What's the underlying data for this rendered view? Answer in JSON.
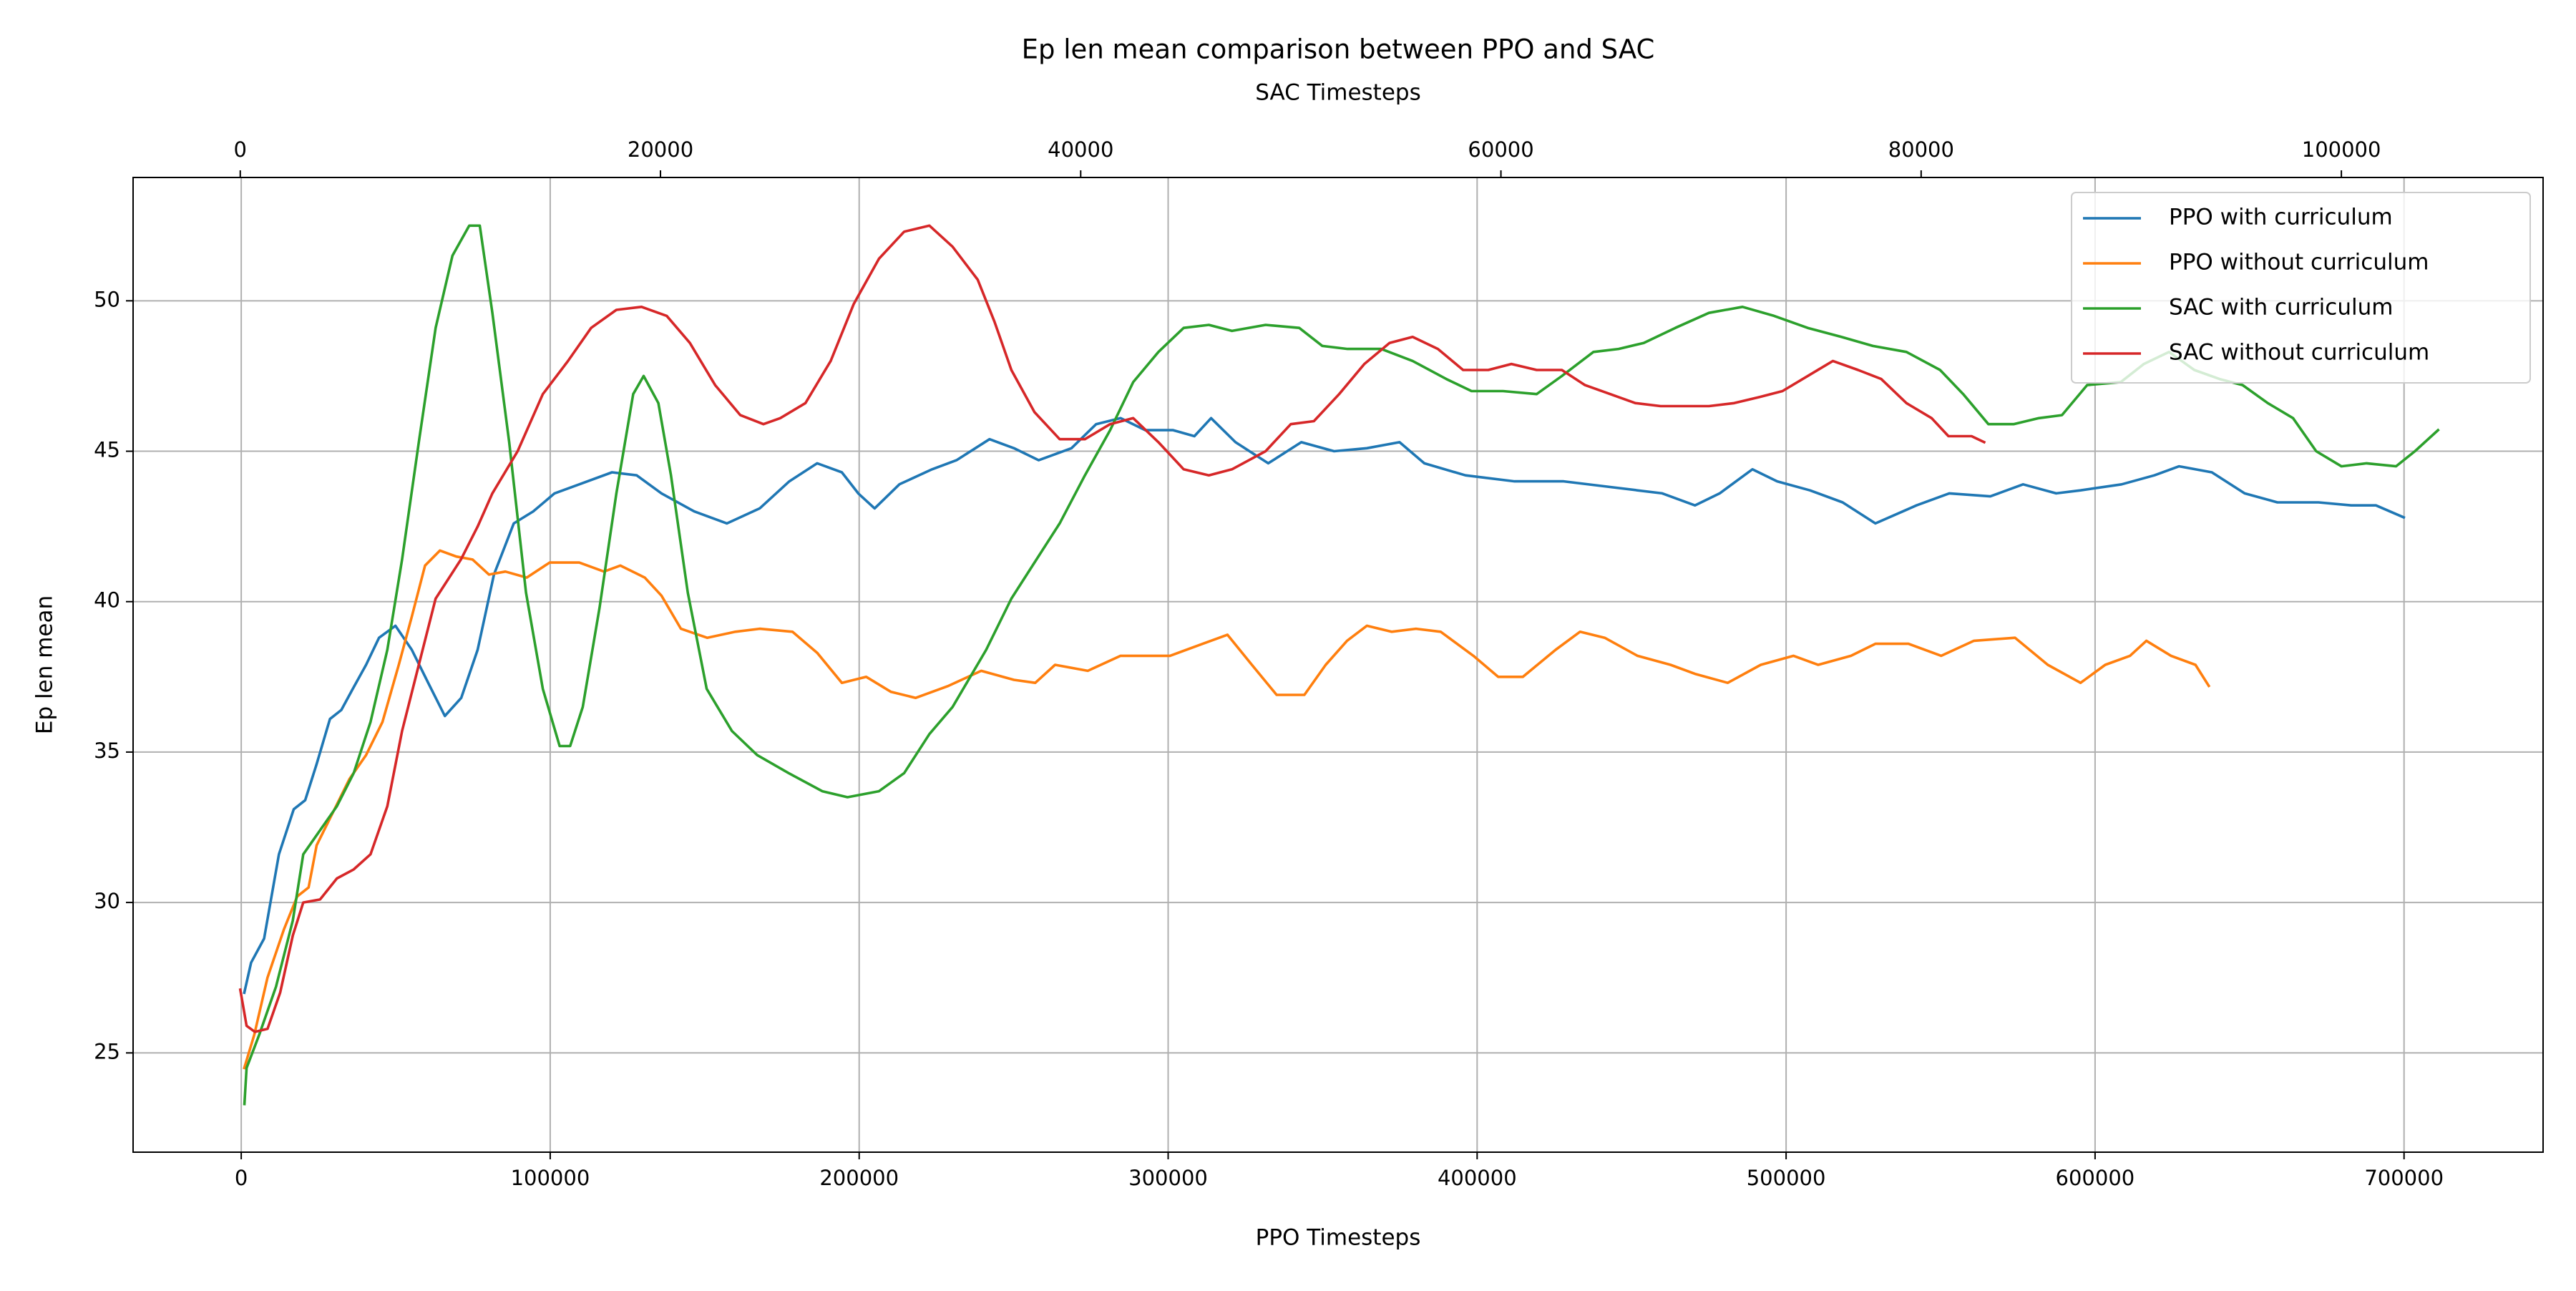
{
  "chart_data": {
    "type": "line",
    "title": "Ep len mean comparison between PPO and SAC",
    "xlabel": "PPO Timesteps",
    "x2label": "SAC Timesteps",
    "ylabel": "Ep len mean",
    "xlim": [
      -35000,
      745000
    ],
    "xticks": [
      0,
      100000,
      200000,
      300000,
      400000,
      500000,
      600000,
      700000
    ],
    "x2lim": [
      -5100,
      109600
    ],
    "x2ticks": [
      0,
      20000,
      40000,
      60000,
      80000,
      100000
    ],
    "ylim": [
      21.7,
      54.1
    ],
    "yticks": [
      25,
      30,
      35,
      40,
      45,
      50
    ],
    "grid": true,
    "legend": "upper right",
    "series": [
      {
        "name": "PPO with curriculum",
        "color": "#1f77b4",
        "axis": "x",
        "x": [
          1000,
          3200,
          7400,
          12200,
          17000,
          20700,
          24400,
          28700,
          32400,
          36100,
          40400,
          44600,
          49900,
          55200,
          60500,
          65900,
          71200,
          76500,
          81800,
          88200,
          94500,
          101400,
          109400,
          120000,
          128000,
          136000,
          146600,
          157200,
          167800,
          177400,
          186400,
          194400,
          199700,
          205000,
          213000,
          223600,
          231500,
          242200,
          250100,
          258100,
          268700,
          276700,
          284600,
          292600,
          301600,
          308500,
          313900,
          321800,
          332400,
          343100,
          353700,
          364300,
          374900,
          382900,
          396200,
          412100,
          428000,
          444000,
          459900,
          470500,
          478500,
          489100,
          497100,
          507700,
          518300,
          528900,
          542200,
          552800,
          566100,
          576700,
          587400,
          595300,
          608600,
          619200,
          627200,
          637800,
          648400,
          659000,
          672300,
          682900,
          690900,
          699900
        ],
        "values": [
          27.0,
          28.0,
          28.8,
          31.6,
          33.1,
          33.4,
          34.6,
          36.1,
          36.4,
          37.1,
          37.9,
          38.8,
          39.2,
          38.4,
          37.3,
          36.2,
          36.8,
          38.4,
          40.9,
          42.6,
          43.0,
          43.6,
          43.9,
          44.3,
          44.2,
          43.6,
          43.0,
          42.6,
          43.1,
          44.0,
          44.6,
          44.3,
          43.6,
          43.1,
          43.9,
          44.4,
          44.7,
          45.4,
          45.1,
          44.7,
          45.1,
          45.9,
          46.1,
          45.7,
          45.7,
          45.5,
          46.1,
          45.3,
          44.6,
          45.3,
          45.0,
          45.1,
          45.3,
          44.6,
          44.2,
          44.0,
          44.0,
          43.8,
          43.6,
          43.2,
          43.6,
          44.4,
          44.0,
          43.7,
          43.3,
          42.6,
          43.2,
          43.6,
          43.5,
          43.9,
          43.6,
          43.7,
          43.9,
          44.2,
          44.5,
          44.3,
          43.6,
          43.3,
          43.3,
          43.2,
          43.2,
          42.8
        ]
      },
      {
        "name": "PPO without curriculum",
        "color": "#ff7f0e",
        "axis": "x",
        "x": [
          1000,
          4200,
          8500,
          13800,
          18100,
          21800,
          24400,
          29700,
          35000,
          40400,
          45700,
          51000,
          55200,
          59500,
          64300,
          69600,
          74900,
          80200,
          85500,
          92400,
          99800,
          109400,
          117400,
          122700,
          130600,
          136000,
          142300,
          150800,
          159900,
          167800,
          178400,
          186400,
          194400,
          202300,
          210300,
          218300,
          228900,
          239500,
          250100,
          257000,
          263400,
          274000,
          284600,
          292600,
          300600,
          311200,
          319200,
          327100,
          335100,
          344100,
          351000,
          357900,
          364300,
          372300,
          380200,
          388200,
          398800,
          406800,
          414800,
          425400,
          433300,
          441300,
          451900,
          462600,
          470500,
          481100,
          491800,
          502400,
          510400,
          521000,
          528900,
          539600,
          550200,
          560800,
          574100,
          584700,
          595300,
          603300,
          611300,
          616600,
          624600,
          632500,
          636800
        ],
        "values": [
          24.5,
          25.6,
          27.5,
          29.1,
          30.2,
          30.5,
          31.9,
          33.0,
          34.1,
          34.9,
          36.0,
          37.9,
          39.5,
          41.2,
          41.7,
          41.5,
          41.4,
          40.9,
          41.0,
          40.8,
          41.3,
          41.3,
          41.0,
          41.2,
          40.8,
          40.2,
          39.1,
          38.8,
          39.0,
          39.1,
          39.0,
          38.3,
          37.3,
          37.5,
          37.0,
          36.8,
          37.2,
          37.7,
          37.4,
          37.3,
          37.9,
          37.7,
          38.2,
          38.2,
          38.2,
          38.6,
          38.9,
          37.9,
          36.9,
          36.9,
          37.9,
          38.7,
          39.2,
          39.0,
          39.1,
          39.0,
          38.2,
          37.5,
          37.5,
          38.4,
          39.0,
          38.8,
          38.2,
          37.9,
          37.6,
          37.3,
          37.9,
          38.2,
          37.9,
          38.2,
          38.6,
          38.6,
          38.2,
          38.7,
          38.8,
          37.9,
          37.3,
          37.9,
          38.2,
          38.7,
          38.2,
          37.9,
          37.2
        ]
      },
      {
        "name": "SAC with curriculum",
        "color": "#2ca02c",
        "axis": "x2",
        "x": [
          200,
          300,
          900,
          1700,
          2500,
          3000,
          3800,
          4600,
          5400,
          6200,
          7000,
          7700,
          8500,
          9300,
          10100,
          10900,
          11400,
          12000,
          12800,
          13600,
          14400,
          15200,
          15700,
          16300,
          17100,
          17900,
          18700,
          19200,
          19900,
          20500,
          21300,
          22200,
          23400,
          24600,
          26100,
          27700,
          28900,
          30400,
          31600,
          32800,
          33900,
          35500,
          36700,
          37800,
          39000,
          40200,
          41400,
          42500,
          43700,
          44900,
          46100,
          47200,
          48800,
          50400,
          51500,
          52700,
          54300,
          55800,
          57400,
          58600,
          60100,
          61700,
          62900,
          64400,
          65600,
          66800,
          68300,
          69900,
          71500,
          73000,
          74600,
          76200,
          77700,
          79300,
          80900,
          82000,
          83200,
          84400,
          85600,
          86700,
          87900,
          89500,
          90600,
          91800,
          93000,
          94200,
          95300,
          96500,
          97700,
          98800,
          100000,
          101200,
          102600,
          103500,
          104600
        ],
        "values": [
          23.3,
          24.5,
          25.6,
          27.2,
          29.4,
          31.6,
          32.4,
          33.2,
          34.3,
          36.0,
          38.4,
          41.4,
          45.3,
          49.1,
          51.5,
          52.5,
          52.5,
          49.6,
          45.3,
          40.3,
          37.1,
          35.2,
          35.2,
          36.5,
          39.8,
          43.6,
          46.9,
          47.5,
          46.6,
          44.2,
          40.3,
          37.1,
          35.7,
          34.9,
          34.3,
          33.7,
          33.5,
          33.7,
          34.3,
          35.6,
          36.5,
          38.4,
          40.1,
          41.3,
          42.6,
          44.2,
          45.7,
          47.3,
          48.3,
          49.1,
          49.2,
          49.0,
          49.2,
          49.1,
          48.5,
          48.4,
          48.4,
          48.0,
          47.4,
          47.0,
          47.0,
          46.9,
          47.5,
          48.3,
          48.4,
          48.6,
          49.1,
          49.6,
          49.8,
          49.5,
          49.1,
          48.8,
          48.5,
          48.3,
          47.7,
          46.9,
          45.9,
          45.9,
          46.1,
          46.2,
          47.2,
          47.3,
          47.9,
          48.3,
          47.7,
          47.4,
          47.2,
          46.6,
          46.1,
          45.0,
          44.5,
          44.6,
          44.5,
          45.0,
          45.7
        ]
      },
      {
        "name": "SAC without curriculum",
        "color": "#d62728",
        "axis": "x2",
        "x": [
          0,
          300,
          700,
          1300,
          1900,
          2500,
          3000,
          3800,
          4600,
          5400,
          6200,
          7000,
          7700,
          8500,
          9300,
          10500,
          11300,
          12000,
          13200,
          14400,
          15600,
          16700,
          17900,
          19100,
          20300,
          21400,
          22600,
          23800,
          24900,
          25700,
          26900,
          28100,
          29200,
          30400,
          31600,
          32800,
          33900,
          35100,
          35900,
          36700,
          37800,
          39000,
          40200,
          41400,
          42500,
          43700,
          44900,
          46100,
          47200,
          48800,
          50000,
          51100,
          52300,
          53500,
          54700,
          55800,
          57000,
          58200,
          59400,
          60500,
          61700,
          62900,
          64000,
          65200,
          66400,
          67600,
          68700,
          69900,
          71100,
          72300,
          73400,
          74600,
          75800,
          77000,
          78100,
          79300,
          80500,
          81300,
          82400,
          83000
        ],
        "values": [
          27.1,
          25.9,
          25.7,
          25.8,
          27.0,
          28.9,
          30.0,
          30.1,
          30.8,
          31.1,
          31.6,
          33.2,
          35.7,
          37.9,
          40.1,
          41.4,
          42.5,
          43.6,
          45.0,
          46.9,
          48.0,
          49.1,
          49.7,
          49.8,
          49.5,
          48.6,
          47.2,
          46.2,
          45.9,
          46.1,
          46.6,
          48.0,
          49.9,
          51.4,
          52.3,
          52.5,
          51.8,
          50.7,
          49.3,
          47.7,
          46.3,
          45.4,
          45.4,
          45.9,
          46.1,
          45.3,
          44.4,
          44.2,
          44.4,
          45.0,
          45.9,
          46.0,
          46.9,
          47.9,
          48.6,
          48.8,
          48.4,
          47.7,
          47.7,
          47.9,
          47.7,
          47.7,
          47.2,
          46.9,
          46.6,
          46.5,
          46.5,
          46.5,
          46.6,
          46.8,
          47.0,
          47.5,
          48.0,
          47.7,
          47.4,
          46.6,
          46.1,
          45.5,
          45.5,
          45.3
        ]
      }
    ]
  }
}
